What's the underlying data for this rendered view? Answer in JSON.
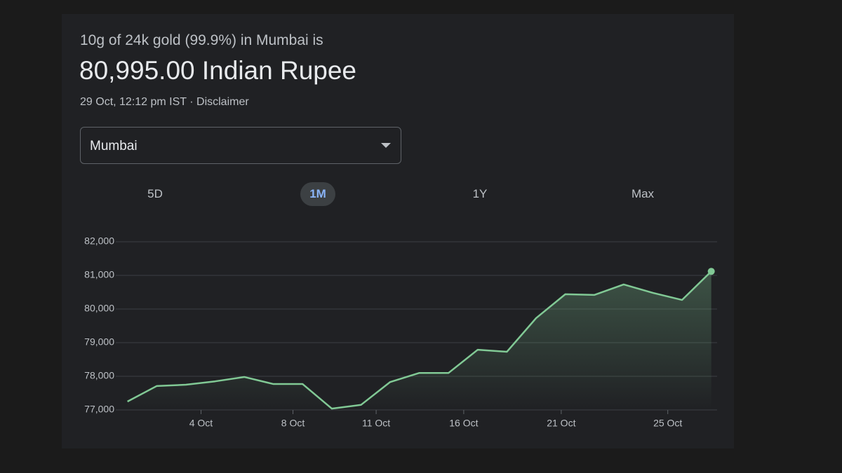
{
  "header": {
    "subtitle": "10g of 24k gold (99.9%) in Mumbai is",
    "price": "80,995.00 Indian Rupee",
    "timestamp": "29 Oct, 12:12 pm IST",
    "separator": "·",
    "disclaimer": "Disclaimer"
  },
  "dropdown": {
    "selected": "Mumbai"
  },
  "tabs": [
    {
      "label": "5D",
      "active": false
    },
    {
      "label": "1M",
      "active": true
    },
    {
      "label": "1Y",
      "active": false
    },
    {
      "label": "Max",
      "active": false
    }
  ],
  "chart_data": {
    "type": "line",
    "x": [
      0,
      1,
      2,
      3,
      4,
      5,
      6,
      7,
      8,
      9,
      10,
      11,
      12,
      13,
      14,
      15,
      16,
      17,
      18,
      19,
      20
    ],
    "series": [
      {
        "color": "#81c995",
        "values": [
          77250,
          77710,
          77750,
          77850,
          77980,
          77770,
          77770,
          77040,
          77150,
          77830,
          78100,
          78100,
          78790,
          78730,
          79730,
          80440,
          80420,
          80730,
          80480,
          80270,
          81120
        ]
      }
    ],
    "xlim": [
      -0.4,
      20.2
    ],
    "xticks": [
      {
        "value": 2.52,
        "label": "4 Oct"
      },
      {
        "value": 5.67,
        "label": "8 Oct"
      },
      {
        "value": 8.52,
        "label": "11 Oct"
      },
      {
        "value": 11.52,
        "label": "16 Oct"
      },
      {
        "value": 14.86,
        "label": "21 Oct"
      },
      {
        "value": 18.51,
        "label": "25 Oct"
      }
    ],
    "ylim": [
      77000,
      82000
    ],
    "yticks": [
      {
        "value": 77000,
        "label": "77,000"
      },
      {
        "value": 78000,
        "label": "78,000"
      },
      {
        "value": 79000,
        "label": "79,000"
      },
      {
        "value": 80000,
        "label": "80,000"
      },
      {
        "value": 81000,
        "label": "81,000"
      },
      {
        "value": 82000,
        "label": "82,000"
      }
    ],
    "grid": true
  }
}
